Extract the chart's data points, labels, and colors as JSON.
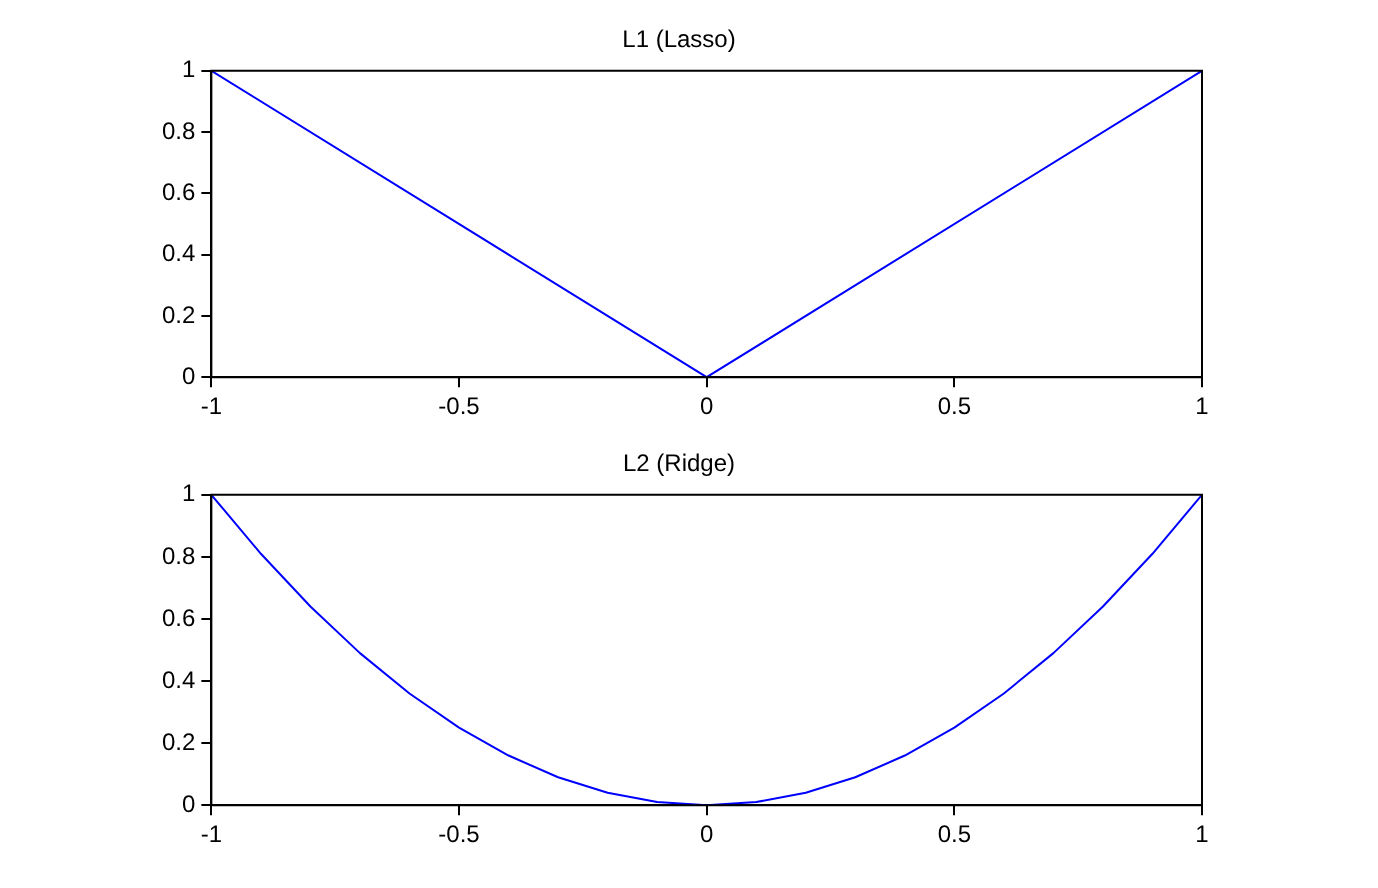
{
  "chart_data": [
    {
      "type": "line",
      "title": "L1 (Lasso)",
      "x": [
        -1,
        0,
        1
      ],
      "series": [
        {
          "color": "#0000ff",
          "values": [
            1,
            0,
            1
          ]
        }
      ],
      "xlim": [
        -1,
        1
      ],
      "ylim": [
        0,
        1
      ],
      "xticks": [
        -1,
        -0.5,
        0,
        0.5,
        1
      ],
      "yticks": [
        0,
        0.2,
        0.4,
        0.6,
        0.8,
        1
      ],
      "grid": false,
      "legend": false
    },
    {
      "type": "line",
      "title": "L2 (Ridge)",
      "x": [
        -1,
        -0.9,
        -0.8,
        -0.7,
        -0.6,
        -0.5,
        -0.4,
        -0.3,
        -0.2,
        -0.1,
        0,
        0.1,
        0.2,
        0.3,
        0.4,
        0.5,
        0.6,
        0.7,
        0.8,
        0.9,
        1
      ],
      "series": [
        {
          "color": "#0000ff",
          "values": [
            1,
            0.81,
            0.64,
            0.49,
            0.36,
            0.25,
            0.16,
            0.09,
            0.04,
            0.01,
            0,
            0.01,
            0.04,
            0.09,
            0.16,
            0.25,
            0.36,
            0.49,
            0.64,
            0.81,
            1
          ]
        }
      ],
      "xlim": [
        -1,
        1
      ],
      "ylim": [
        0,
        1
      ],
      "xticks": [
        -1,
        -0.5,
        0,
        0.5,
        1
      ],
      "yticks": [
        0,
        0.2,
        0.4,
        0.6,
        0.8,
        1
      ],
      "grid": false,
      "legend": false
    }
  ]
}
